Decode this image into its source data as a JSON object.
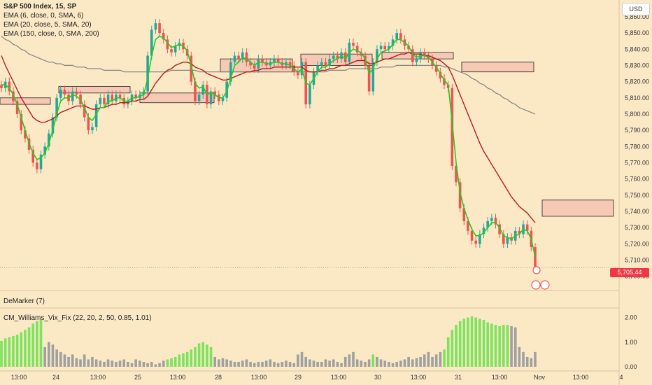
{
  "header": {
    "title_line": "S&P 500 Index, 15, SP",
    "indicators": [
      "EMA (6, close, 0, SMA, 6)",
      "EMA (20, close, 5, SMA, 20)",
      "EMA (150, close, 0, SMA, 200)"
    ],
    "currency": "USD"
  },
  "lower_panels": {
    "demarker_label": "DeMarker (7)",
    "vix_fix_label": "CM_Williams_Vix_Fix (22, 20, 2, 50, 0.85, 1.01)"
  },
  "last_price": "5,705.44",
  "colors": {
    "background": "#fbe9c6",
    "up_candle": "#26a69a",
    "down_candle": "#ef5350",
    "ema_fast": "#22cc22",
    "ema_mid": "#b71c1c",
    "ema_slow": "#808080",
    "zone_fill": "#f6c9b4",
    "vix_high": "#7ce35c",
    "vix_low": "#a0a0a0",
    "price_tag": "#f23645"
  },
  "chart_data": [
    {
      "type": "candlestick",
      "y_axis_ticks": [
        "5,860.00",
        "5,850.00",
        "5,840.00",
        "5,830.00",
        "5,820.00",
        "5,810.00",
        "5,800.00",
        "5,790.00",
        "5,780.00",
        "5,770.00",
        "5,760.00",
        "5,750.00",
        "5,740.00",
        "5,730.00",
        "5,720.00",
        "5,710.00",
        "5,700.00"
      ],
      "ylim": [
        5696,
        5866
      ],
      "x_axis_ticks": [
        "13:00",
        "24",
        "13:00",
        "25",
        "13:00",
        "28",
        "13:00",
        "29",
        "13:00",
        "30",
        "13:00",
        "31",
        "13:00",
        "Nov",
        "13:00",
        "4"
      ],
      "closes": [
        5816,
        5820,
        5814,
        5808,
        5800,
        5790,
        5785,
        5778,
        5770,
        5766,
        5775,
        5780,
        5788,
        5798,
        5810,
        5815,
        5812,
        5808,
        5814,
        5812,
        5806,
        5798,
        5790,
        5792,
        5806,
        5810,
        5806,
        5812,
        5808,
        5812,
        5810,
        5806,
        5808,
        5812,
        5810,
        5812,
        5814,
        5836,
        5852,
        5856,
        5850,
        5846,
        5840,
        5838,
        5842,
        5844,
        5840,
        5836,
        5820,
        5808,
        5812,
        5818,
        5806,
        5814,
        5812,
        5808,
        5810,
        5820,
        5832,
        5836,
        5834,
        5838,
        5832,
        5830,
        5828,
        5834,
        5832,
        5830,
        5832,
        5834,
        5832,
        5830,
        5832,
        5830,
        5826,
        5824,
        5832,
        5806,
        5818,
        5826,
        5830,
        5832,
        5830,
        5834,
        5836,
        5834,
        5838,
        5832,
        5844,
        5842,
        5838,
        5836,
        5830,
        5814,
        5832,
        5840,
        5842,
        5840,
        5842,
        5846,
        5850,
        5846,
        5842,
        5840,
        5832,
        5834,
        5838,
        5836,
        5834,
        5830,
        5826,
        5822,
        5818,
        5816,
        5768,
        5758,
        5742,
        5734,
        5728,
        5722,
        5720,
        5726,
        5730,
        5734,
        5736,
        5732,
        5726,
        5720,
        5724,
        5722,
        5728,
        5726,
        5732,
        5728,
        5718,
        5706
      ],
      "ema_fast": [
        5818,
        5818,
        5816,
        5812,
        5806,
        5798,
        5790,
        5782,
        5776,
        5772,
        5773,
        5776,
        5782,
        5790,
        5800,
        5808,
        5810,
        5810,
        5812,
        5811,
        5809,
        5804,
        5798,
        5796,
        5800,
        5804,
        5804,
        5808,
        5808,
        5810,
        5810,
        5808,
        5808,
        5810,
        5810,
        5811,
        5812,
        5822,
        5836,
        5846,
        5848,
        5847,
        5844,
        5841,
        5842,
        5843,
        5842,
        5839,
        5830,
        5819,
        5816,
        5817,
        5812,
        5813,
        5812,
        5810,
        5810,
        5814,
        5822,
        5830,
        5832,
        5835,
        5834,
        5832,
        5830,
        5832,
        5832,
        5831,
        5831,
        5832,
        5832,
        5831,
        5831,
        5830,
        5828,
        5826,
        5828,
        5819,
        5818,
        5822,
        5826,
        5829,
        5829,
        5831,
        5833,
        5834,
        5836,
        5834,
        5838,
        5840,
        5839,
        5838,
        5834,
        5825,
        5828,
        5834,
        5838,
        5839,
        5840,
        5843,
        5846,
        5846,
        5844,
        5842,
        5837,
        5835,
        5836,
        5836,
        5835,
        5832,
        5829,
        5825,
        5821,
        5818,
        5795,
        5770,
        5752,
        5742,
        5735,
        5729,
        5725,
        5725,
        5727,
        5730,
        5733,
        5733,
        5730,
        5725,
        5724,
        5723,
        5725,
        5726,
        5729,
        5728,
        5723,
        5712
      ],
      "ema_mid": [
        5836,
        5830,
        5825,
        5820,
        5815,
        5810,
        5806,
        5802,
        5798,
        5796,
        5795,
        5795,
        5796,
        5797,
        5799,
        5801,
        5802,
        5803,
        5804,
        5805,
        5805,
        5805,
        5804,
        5803,
        5803,
        5804,
        5804,
        5805,
        5806,
        5806,
        5807,
        5807,
        5807,
        5808,
        5808,
        5809,
        5809,
        5811,
        5815,
        5819,
        5822,
        5825,
        5827,
        5828,
        5830,
        5831,
        5832,
        5832,
        5831,
        5829,
        5828,
        5827,
        5825,
        5824,
        5823,
        5822,
        5821,
        5821,
        5822,
        5823,
        5824,
        5825,
        5826,
        5826,
        5827,
        5827,
        5828,
        5828,
        5828,
        5829,
        5829,
        5829,
        5829,
        5829,
        5829,
        5829,
        5829,
        5827,
        5826,
        5826,
        5826,
        5827,
        5827,
        5828,
        5828,
        5829,
        5830,
        5830,
        5831,
        5832,
        5833,
        5833,
        5833,
        5831,
        5831,
        5832,
        5833,
        5834,
        5834,
        5835,
        5836,
        5837,
        5837,
        5838,
        5837,
        5837,
        5837,
        5836,
        5836,
        5835,
        5834,
        5833,
        5831,
        5829,
        5824,
        5818,
        5812,
        5806,
        5800,
        5794,
        5788,
        5782,
        5777,
        5773,
        5769,
        5765,
        5761,
        5757,
        5753,
        5749,
        5746,
        5743,
        5741,
        5739,
        5736,
        5733
      ],
      "ema_slow": [
        5848,
        5846,
        5845,
        5843,
        5842,
        5840,
        5839,
        5837,
        5836,
        5835,
        5834,
        5833,
        5832,
        5832,
        5831,
        5831,
        5830,
        5830,
        5830,
        5829,
        5829,
        5829,
        5828,
        5828,
        5828,
        5828,
        5827,
        5827,
        5827,
        5827,
        5827,
        5826,
        5826,
        5826,
        5826,
        5826,
        5826,
        5826,
        5826,
        5826,
        5826,
        5826,
        5826,
        5827,
        5827,
        5827,
        5827,
        5827,
        5827,
        5827,
        5826,
        5826,
        5826,
        5826,
        5826,
        5826,
        5826,
        5826,
        5826,
        5826,
        5826,
        5826,
        5826,
        5826,
        5826,
        5826,
        5826,
        5826,
        5826,
        5826,
        5826,
        5826,
        5826,
        5826,
        5826,
        5826,
        5826,
        5826,
        5826,
        5826,
        5826,
        5826,
        5826,
        5827,
        5827,
        5827,
        5827,
        5827,
        5828,
        5828,
        5828,
        5828,
        5828,
        5828,
        5828,
        5828,
        5829,
        5829,
        5829,
        5829,
        5830,
        5830,
        5830,
        5830,
        5830,
        5830,
        5830,
        5830,
        5830,
        5830,
        5830,
        5830,
        5829,
        5829,
        5828,
        5827,
        5826,
        5825,
        5824,
        5822,
        5821,
        5819,
        5818,
        5816,
        5815,
        5813,
        5812,
        5810,
        5809,
        5807,
        5806,
        5804,
        5803,
        5802,
        5801,
        5800
      ],
      "zones": [
        [
          5810,
          5806
        ],
        [
          5817,
          5813
        ],
        [
          5813,
          5807
        ],
        [
          5834,
          5826
        ],
        [
          5837,
          5830
        ],
        [
          5838,
          5834
        ],
        [
          5832,
          5826
        ],
        [
          5747,
          5737
        ]
      ]
    },
    {
      "type": "bar",
      "title": "CM_Williams_Vix_Fix (22, 20, 2, 50, 0.85, 1.01)",
      "y_axis_ticks": [
        "2.00",
        "1.00",
        "0.00"
      ],
      "ylim": [
        0,
        2.1
      ],
      "values": [
        1.05,
        1.15,
        1.2,
        1.25,
        1.3,
        1.4,
        1.5,
        1.6,
        1.75,
        1.85,
        1.9,
        0.8,
        1.0,
        0.9,
        0.7,
        0.6,
        0.5,
        0.4,
        0.5,
        0.35,
        0.3,
        0.5,
        0.3,
        0.4,
        0.3,
        0.25,
        0.2,
        0.3,
        0.25,
        0.2,
        0.25,
        0.3,
        0.2,
        0.15,
        0.3,
        0.25,
        0.2,
        0.15,
        0.2,
        0.1,
        0.15,
        0.25,
        0.3,
        0.35,
        0.4,
        0.5,
        0.55,
        0.6,
        0.7,
        0.8,
        0.95,
        1.0,
        0.9,
        0.8,
        0.4,
        0.3,
        0.35,
        0.3,
        0.25,
        0.2,
        0.2,
        0.25,
        0.3,
        0.2,
        0.15,
        0.2,
        0.2,
        0.25,
        0.3,
        0.2,
        0.15,
        0.2,
        0.25,
        0.2,
        0.15,
        0.5,
        0.6,
        0.4,
        0.3,
        0.25,
        0.2,
        0.2,
        0.3,
        0.25,
        0.3,
        0.2,
        0.15,
        0.4,
        0.5,
        0.6,
        0.3,
        0.25,
        0.2,
        0.3,
        0.5,
        0.4,
        0.3,
        0.25,
        0.2,
        0.15,
        0.2,
        0.25,
        0.3,
        0.4,
        0.3,
        0.35,
        0.4,
        0.5,
        0.6,
        0.4,
        0.5,
        0.6,
        0.7,
        1.2,
        1.5,
        1.7,
        1.85,
        1.95,
        2.0,
        2.05,
        2.0,
        1.95,
        1.9,
        1.8,
        1.75,
        1.7,
        1.65,
        1.7,
        1.7,
        1.65,
        1.6,
        0.8,
        0.6,
        0.4,
        0.35,
        0.6
      ],
      "high_flags": [
        1,
        1,
        1,
        1,
        1,
        1,
        1,
        1,
        1,
        1,
        1,
        0,
        0,
        0,
        0,
        0,
        0,
        0,
        0,
        0,
        0,
        0,
        0,
        0,
        0,
        0,
        0,
        0,
        0,
        0,
        0,
        0,
        0,
        0,
        0,
        0,
        0,
        0,
        0,
        0,
        0,
        0,
        1,
        1,
        1,
        1,
        1,
        1,
        1,
        1,
        1,
        1,
        1,
        1,
        0,
        0,
        0,
        0,
        0,
        0,
        0,
        0,
        0,
        0,
        0,
        0,
        0,
        0,
        0,
        0,
        0,
        0,
        0,
        0,
        0,
        0,
        0,
        0,
        0,
        0,
        0,
        0,
        0,
        0,
        0,
        0,
        0,
        0,
        0,
        0,
        0,
        0,
        0,
        0,
        1,
        0,
        0,
        0,
        0,
        0,
        0,
        0,
        0,
        0,
        0,
        0,
        0,
        0,
        0,
        0,
        0,
        0,
        1,
        1,
        1,
        1,
        1,
        1,
        1,
        1,
        1,
        1,
        1,
        1,
        1,
        1,
        1,
        1,
        1,
        0,
        0,
        0,
        0,
        0
      ]
    }
  ]
}
